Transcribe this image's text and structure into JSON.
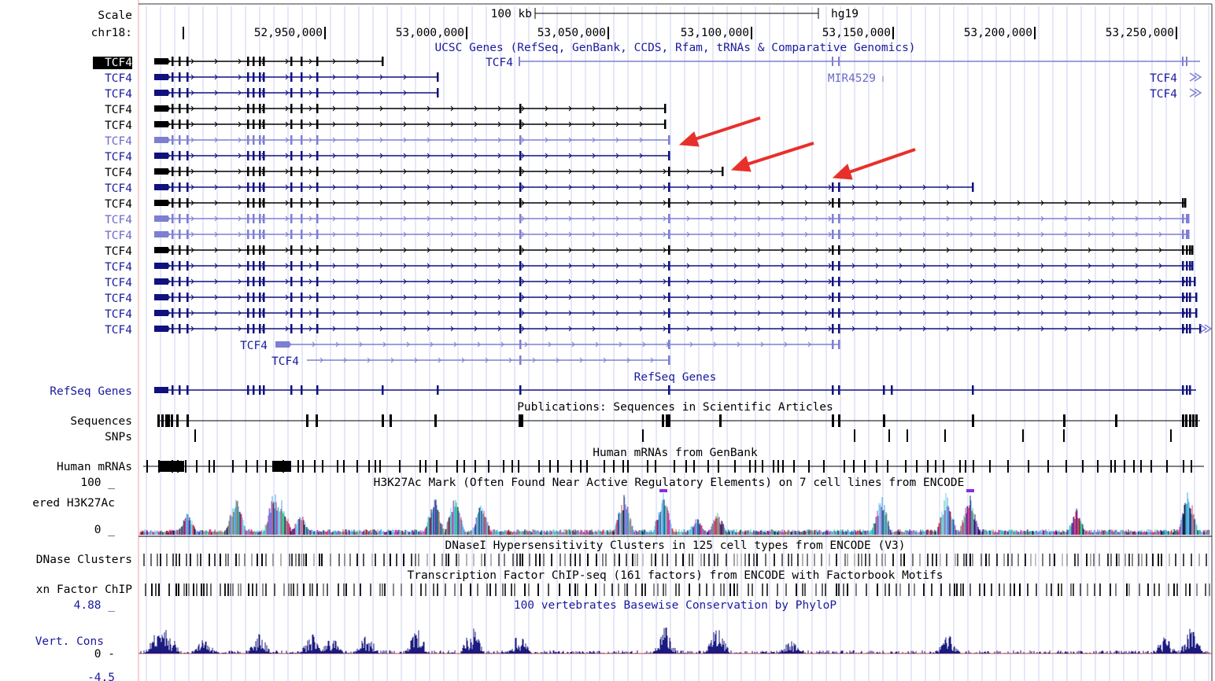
{
  "scale": {
    "label": "Scale",
    "size_label": "100 kb",
    "assembly": "hg19"
  },
  "chrom": {
    "label": "chr18:",
    "positions": [
      "52,950,000",
      "53,000,000",
      "53,050,000",
      "53,100,000",
      "53,150,000",
      "53,200,000",
      "53,250,000"
    ]
  },
  "tracks": {
    "ucsc_title": "UCSC Genes (RefSeq, GenBank, CCDS, Rfam, tRNAs & Comparative Genomics)",
    "gene_labels": [
      "TCF4",
      "TCF4",
      "TCF4",
      "TCF4",
      "TCF4",
      "TCF4",
      "TCF4",
      "TCF4",
      "TCF4",
      "TCF4",
      "TCF4",
      "TCF4",
      "TCF4",
      "TCF4",
      "TCF4",
      "TCF4",
      "TCF4",
      "TCF4"
    ],
    "inline": {
      "top_tcf4": "TCF4",
      "mir": "MIR4529",
      "right_tcf4_a": "TCF4",
      "right_tcf4_b": "TCF4",
      "lower_tcf4_a": "TCF4",
      "lower_tcf4_b": "TCF4"
    },
    "refseq_title": "RefSeq Genes",
    "refseq_label": "RefSeq Genes",
    "pubs_title": "Publications: Sequences in Scientific Articles",
    "sequences_label": "Sequences",
    "snps_label": "SNPs",
    "mrna_title": "Human mRNAs from GenBank",
    "mrna_label": "Human mRNAs",
    "h3k_title": "H3K27Ac Mark (Often Found Near Active Regulatory Elements) on 7 cell lines from ENCODE",
    "h3k_label": "ered H3K27Ac",
    "h3k_max": "100 _",
    "h3k_min": "0 _",
    "dnase_title": "DNaseI Hypersensitivity Clusters in 125 cell types from ENCODE (V3)",
    "dnase_label": "DNase Clusters",
    "tfbs_title": "Transcription Factor ChIP-seq (161 factors) from ENCODE with Factorbook Motifs",
    "tfbs_label": "xn Factor ChIP",
    "cons_title": "100 vertebrates Basewise Conservation by PhyloP",
    "cons_label": "Vert. Cons",
    "cons_max": "4.88 _",
    "cons_min": "0 -",
    "cons_bottom": "-4.5"
  },
  "colors": {
    "black_gene": "#000000",
    "blue_gene": "#10107e",
    "light_gene": "#7e7ed2",
    "arrow": "#e8302a",
    "guide": "#c8c8f0"
  },
  "icons": [
    "red-annotation-arrow"
  ]
}
